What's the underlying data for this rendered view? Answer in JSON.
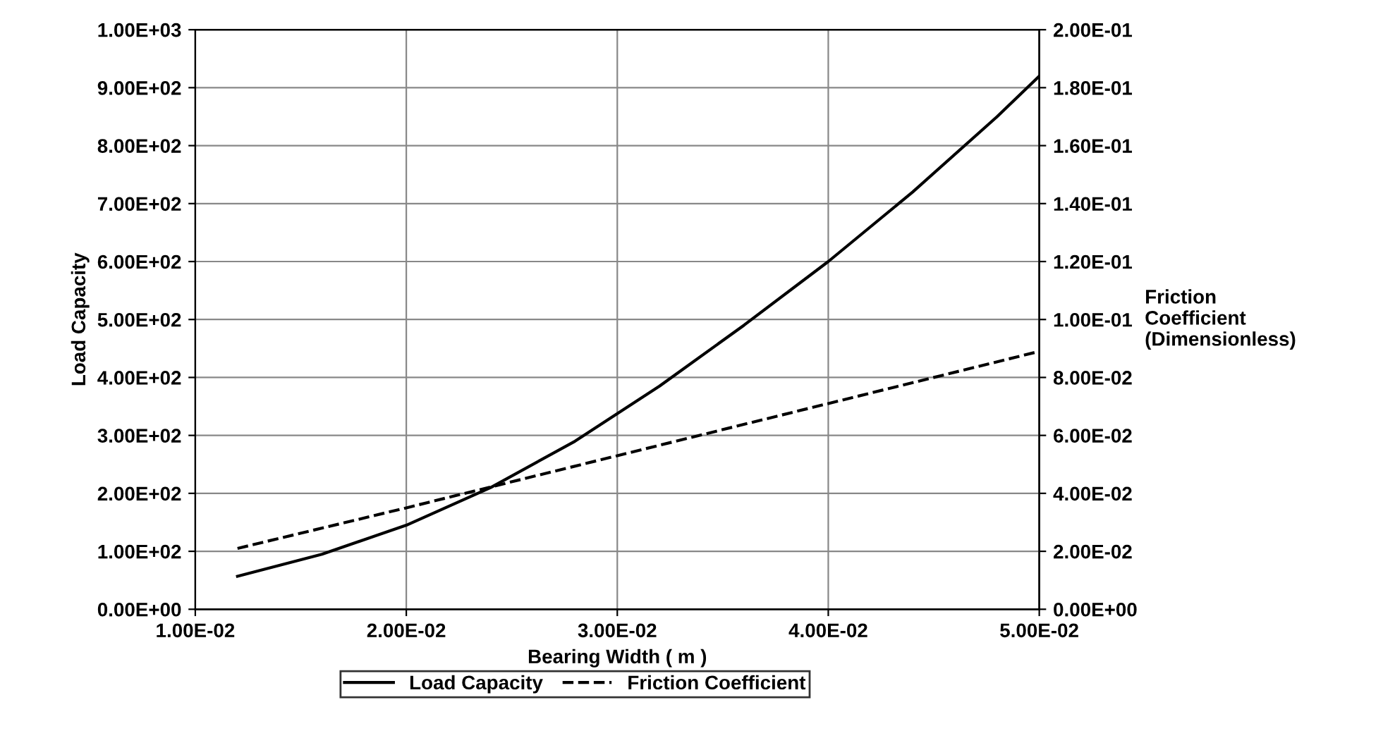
{
  "chart_data": {
    "type": "line",
    "xlabel": "Bearing Width ( m )",
    "ylabel": "Load Capacity",
    "y2label": "Friction\nCoefficient\n(Dimensionless)",
    "xlim": [
      0.01,
      0.05
    ],
    "ylim": [
      0,
      1000
    ],
    "y2lim": [
      0,
      0.2
    ],
    "xticks": [
      {
        "value": 0.01,
        "label": "1.00E-02"
      },
      {
        "value": 0.02,
        "label": "2.00E-02"
      },
      {
        "value": 0.03,
        "label": "3.00E-02"
      },
      {
        "value": 0.04,
        "label": "4.00E-02"
      },
      {
        "value": 0.05,
        "label": "5.00E-02"
      }
    ],
    "yticks": [
      {
        "value": 0,
        "label": "0.00E+00"
      },
      {
        "value": 100,
        "label": "1.00E+02"
      },
      {
        "value": 200,
        "label": "2.00E+02"
      },
      {
        "value": 300,
        "label": "3.00E+02"
      },
      {
        "value": 400,
        "label": "4.00E+02"
      },
      {
        "value": 500,
        "label": "5.00E+02"
      },
      {
        "value": 600,
        "label": "6.00E+02"
      },
      {
        "value": 700,
        "label": "7.00E+02"
      },
      {
        "value": 800,
        "label": "8.00E+02"
      },
      {
        "value": 900,
        "label": "9.00E+02"
      },
      {
        "value": 1000,
        "label": "1.00E+03"
      }
    ],
    "y2ticks": [
      {
        "value": 0,
        "label": "0.00E+00"
      },
      {
        "value": 0.02,
        "label": "2.00E-02"
      },
      {
        "value": 0.04,
        "label": "4.00E-02"
      },
      {
        "value": 0.06,
        "label": "6.00E-02"
      },
      {
        "value": 0.08,
        "label": "8.00E-02"
      },
      {
        "value": 0.1,
        "label": "1.00E-01"
      },
      {
        "value": 0.12,
        "label": "1.20E-01"
      },
      {
        "value": 0.14,
        "label": "1.40E-01"
      },
      {
        "value": 0.16,
        "label": "1.60E-01"
      },
      {
        "value": 0.18,
        "label": "1.80E-01"
      },
      {
        "value": 0.2,
        "label": "2.00E-01"
      }
    ],
    "grid": true,
    "legend": "bottom",
    "series": [
      {
        "name": "Load Capacity",
        "color": "#000000",
        "line_style": "solid",
        "x": [
          0.012,
          0.016,
          0.02,
          0.024,
          0.028,
          0.032,
          0.036,
          0.04,
          0.044,
          0.048,
          0.05
        ],
        "values": [
          57,
          95,
          145,
          210,
          290,
          385,
          490,
          600,
          720,
          850,
          920
        ]
      },
      {
        "name": "Friction Coefficient",
        "color": "#000000",
        "line_style": "dashed",
        "axis": "y2",
        "x": [
          0.012,
          0.02,
          0.03,
          0.04,
          0.05
        ],
        "values": [
          0.021,
          0.035,
          0.053,
          0.071,
          0.089
        ]
      }
    ]
  }
}
